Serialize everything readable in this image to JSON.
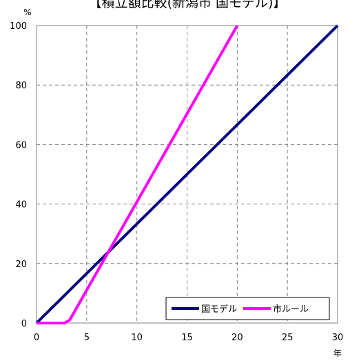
{
  "chart_data": {
    "type": "line",
    "title": "【積立額比較(新潟市 国モデル)】",
    "xlabel": "年",
    "ylabel": "%",
    "xlim": [
      0,
      30
    ],
    "ylim": [
      0,
      100
    ],
    "x_ticks": [
      "0",
      "5",
      "10",
      "15",
      "20",
      "25",
      "30"
    ],
    "y_ticks": [
      "0",
      "20",
      "40",
      "60",
      "80",
      "100"
    ],
    "grid": true,
    "legend_position": "bottom-right",
    "series": [
      {
        "name": "国モデル",
        "color": "#000080",
        "x": [
          0,
          30
        ],
        "y": [
          0,
          100
        ]
      },
      {
        "name": "市ルール",
        "color": "#ff00ff",
        "x": [
          0,
          2.8,
          3.3,
          20
        ],
        "y": [
          0,
          0,
          1,
          100
        ]
      }
    ]
  }
}
